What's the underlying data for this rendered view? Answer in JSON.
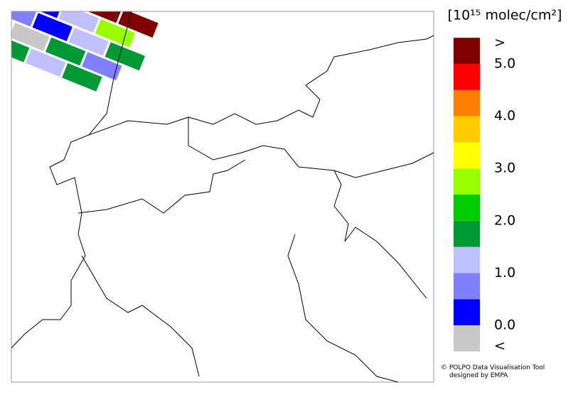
{
  "legend": {
    "title": "[10¹⁵ molec/cm²]",
    "bounds": [
      0,
      0.5,
      1,
      1.5,
      2,
      2.5,
      3,
      3.5,
      4,
      4.5,
      5
    ],
    "under_color": "#c8c8c8",
    "colors": [
      "#0000ff",
      "#8080ff",
      "#c0c0ff",
      "#009933",
      "#00cc00",
      "#99ff00",
      "#ffff00",
      "#ffcc00",
      "#ff8000",
      "#ff0000"
    ],
    "over_color": "#800000",
    "ticks": [
      {
        "value": 0,
        "label": "0.0"
      },
      {
        "value": 1,
        "label": "1.0"
      },
      {
        "value": 2,
        "label": "2.0"
      },
      {
        "value": 3,
        "label": "3.0"
      },
      {
        "value": 4,
        "label": "4.0"
      },
      {
        "value": 5,
        "label": "5.0"
      }
    ],
    "under_label": "<",
    "over_label": ">"
  },
  "credits": [
    "© POLPO Data Visualisation Tool",
    "designed by EMPA"
  ]
}
